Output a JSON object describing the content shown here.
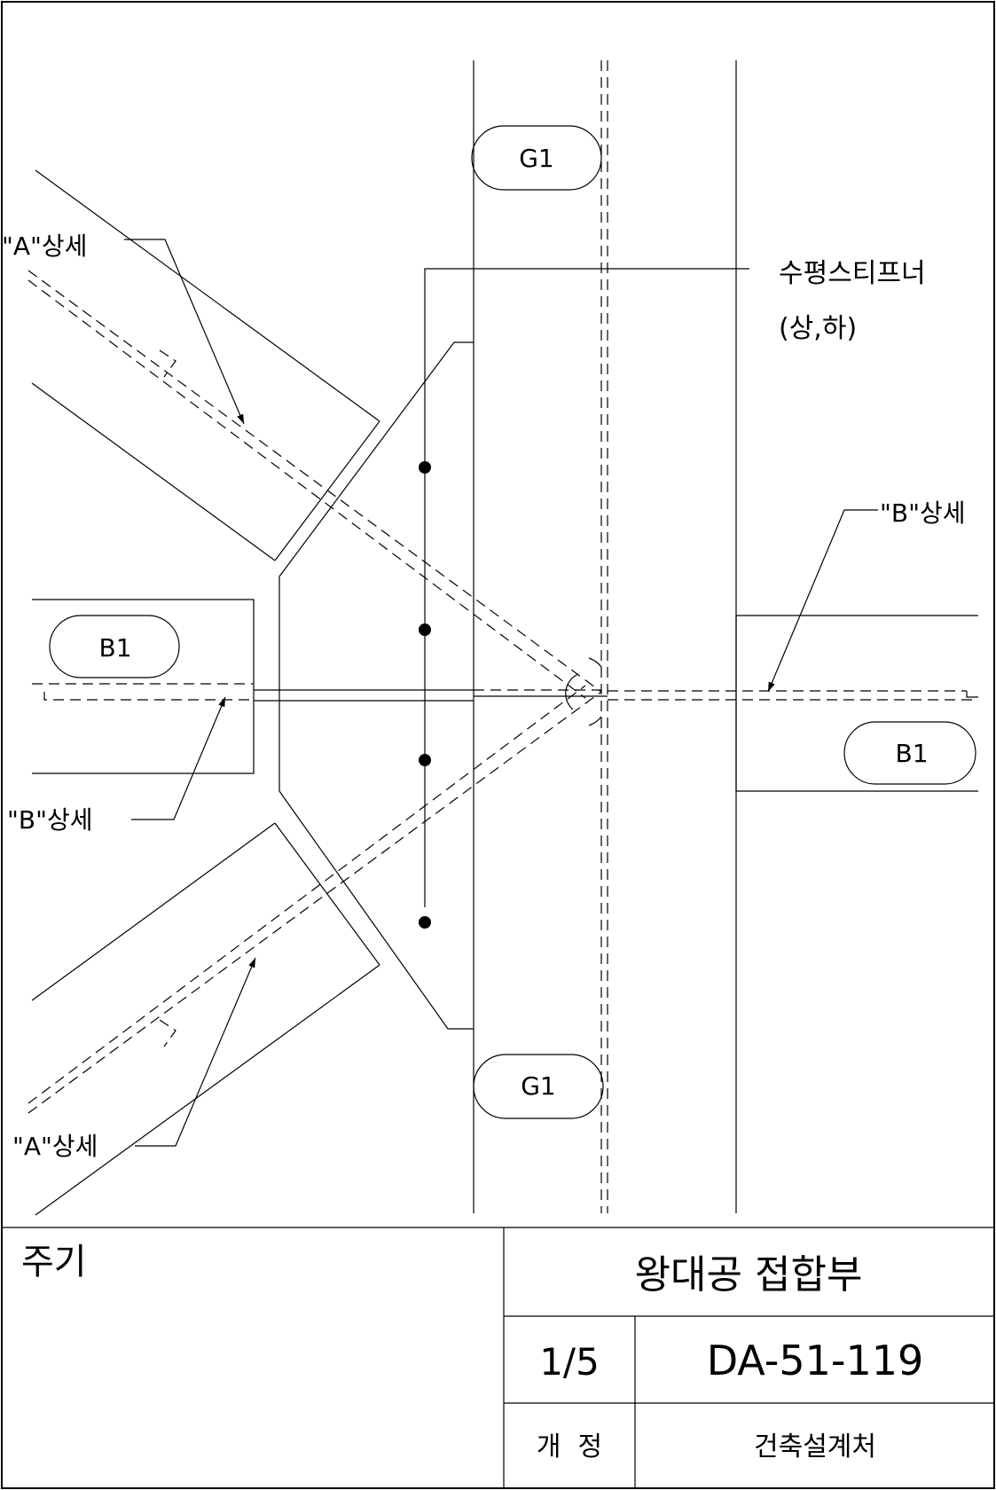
{
  "drawing": {
    "member_tags": {
      "girder_top": "G1",
      "girder_bottom": "G1",
      "beam_left": "B1",
      "beam_right": "B1"
    },
    "callouts": {
      "detail_a_upper": "\"A\"상세",
      "detail_a_lower": "\"A\"상세",
      "detail_b_left": "\"B\"상세",
      "detail_b_right": "\"B\"상세",
      "stiffener_line1": "수평스티프너",
      "stiffener_line2": "(상,하)"
    }
  },
  "title_block": {
    "notes_label": "주기",
    "drawing_title": "왕대공 접합부",
    "sheet": "1/5",
    "drawing_number": "DA-51-119",
    "revision_label": "개  정",
    "department": "건축설계처"
  }
}
